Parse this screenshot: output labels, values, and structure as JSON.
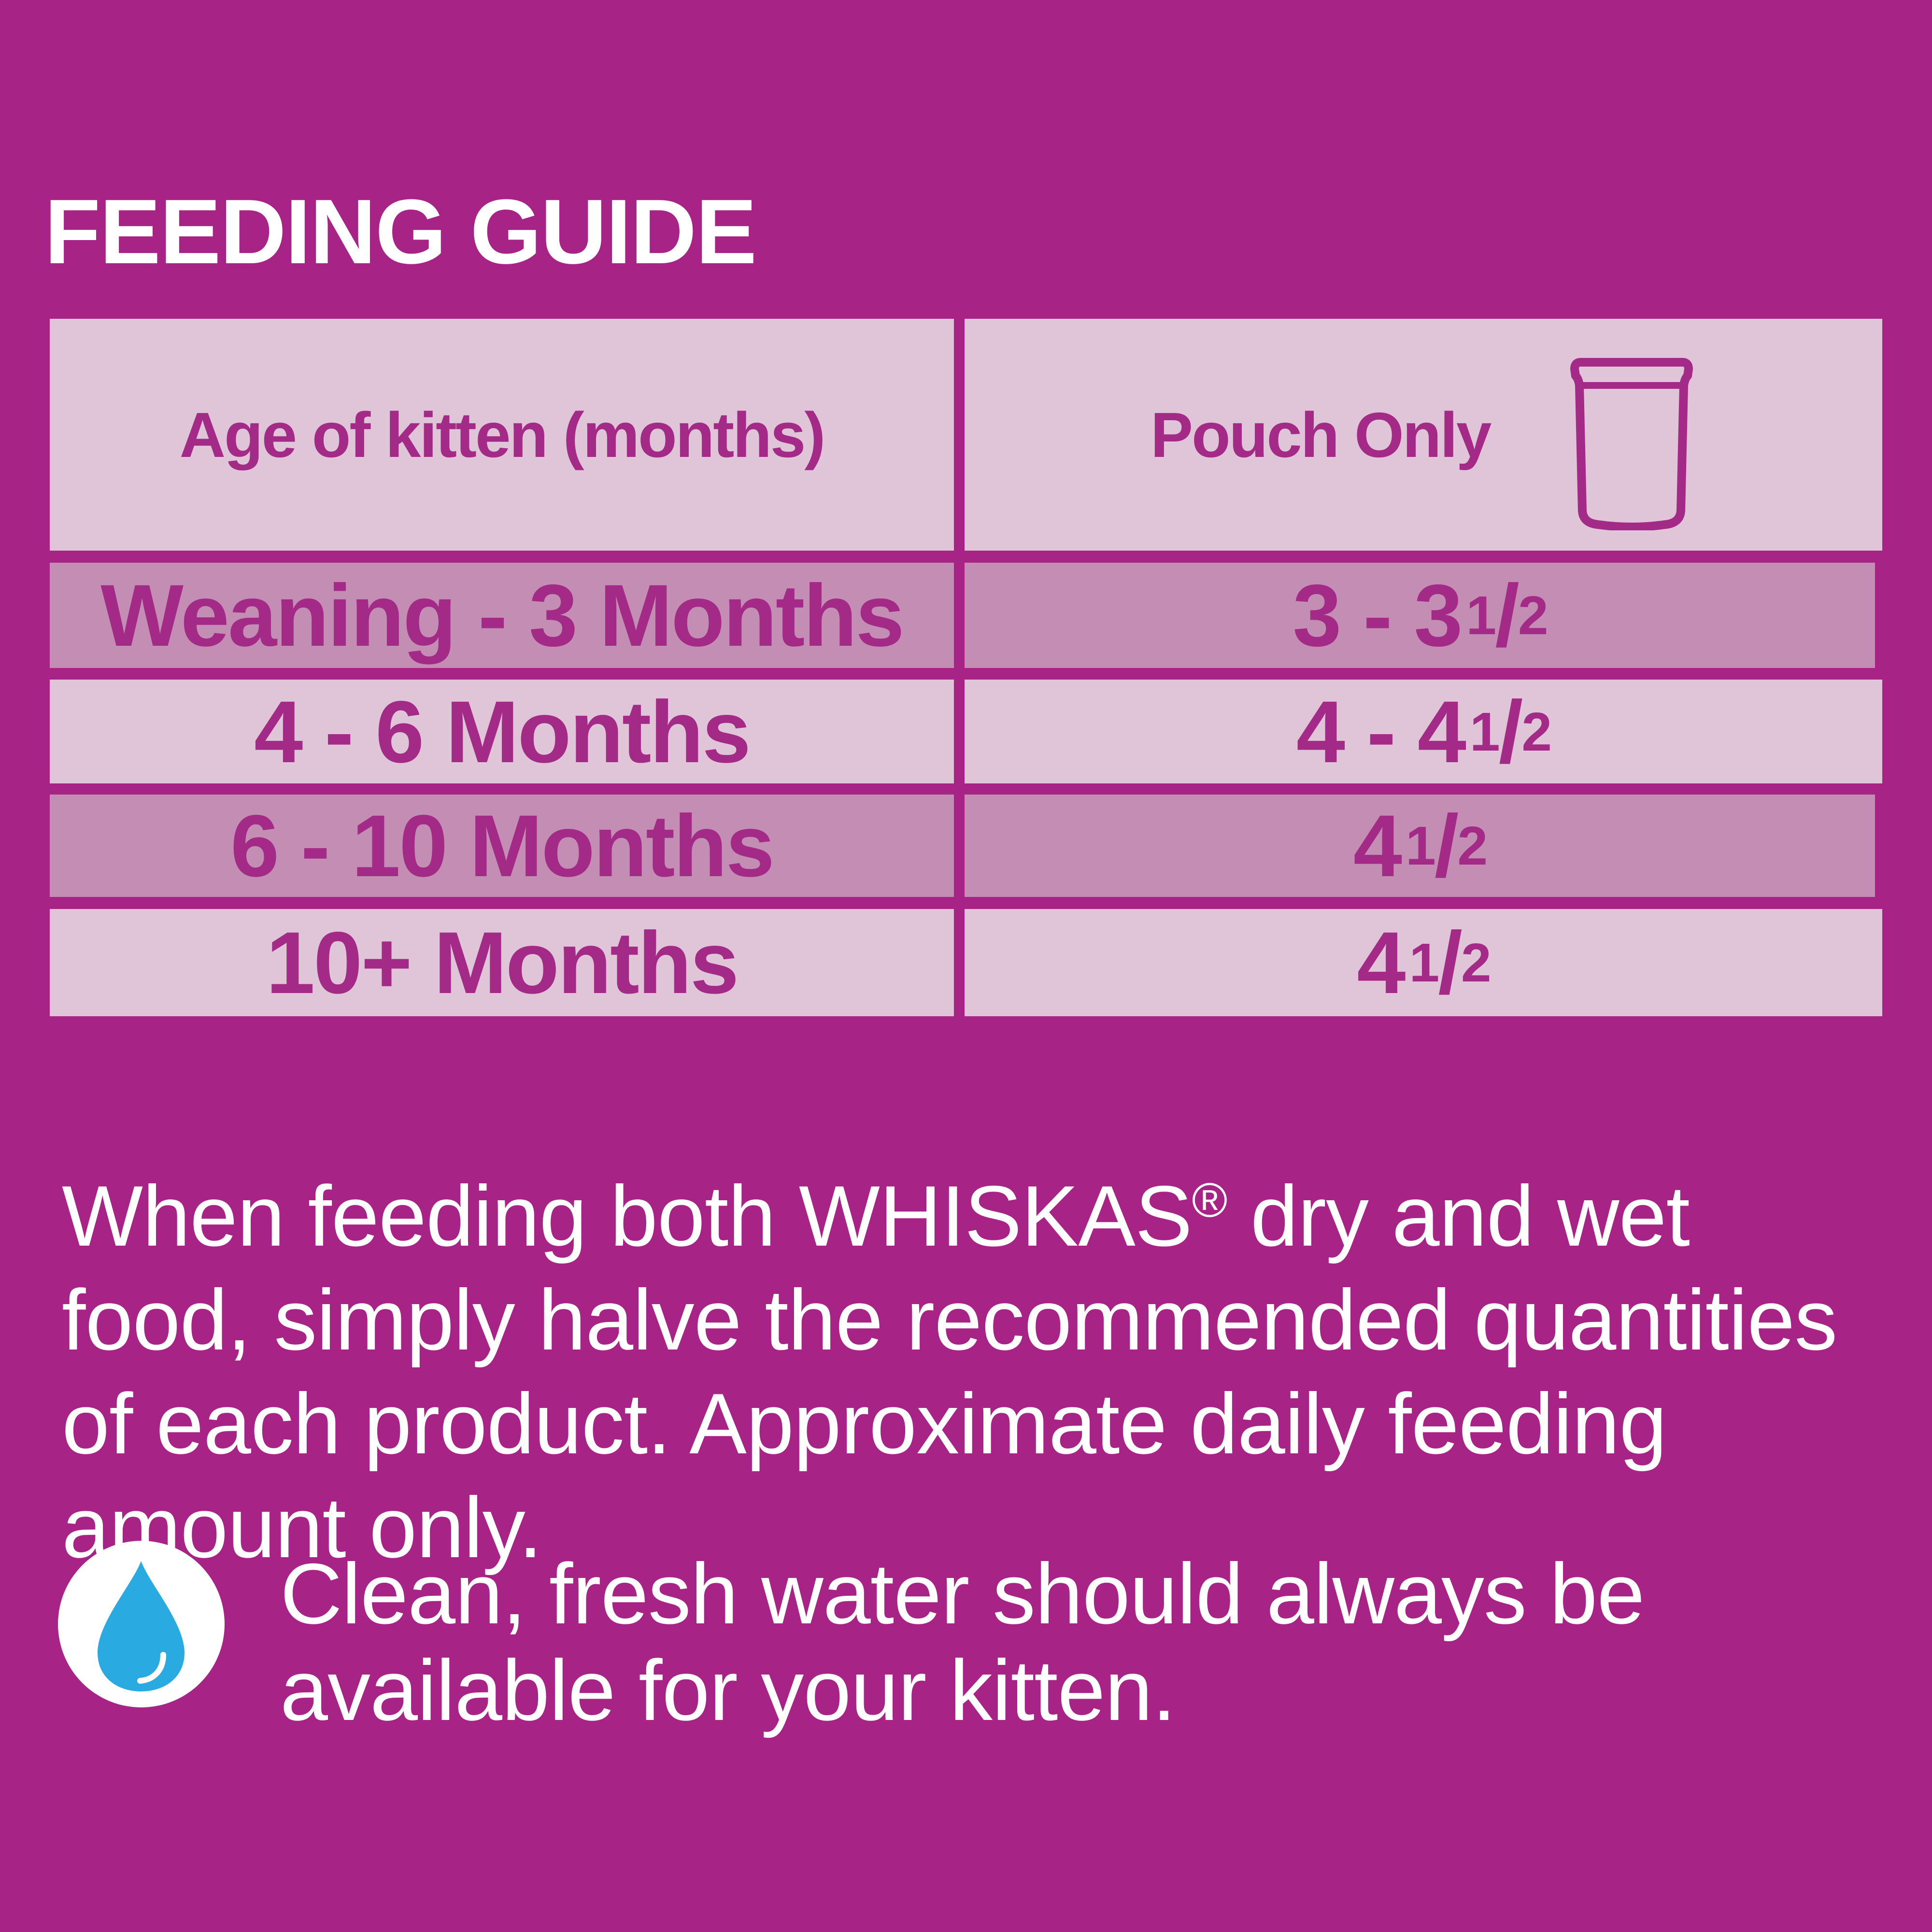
{
  "title": "FEEDING GUIDE",
  "table": {
    "headers": {
      "age": "Age of kitten (months)",
      "pouch": "Pouch Only",
      "pouch_icon": "pouch-icon"
    },
    "rows": [
      {
        "age": "Weaning - 3 Months",
        "amount_whole": "3 - 3",
        "amount_num": "1",
        "amount_den": "2"
      },
      {
        "age": "4 - 6 Months",
        "amount_whole": "4 - 4",
        "amount_num": "1",
        "amount_den": "2"
      },
      {
        "age": "6 - 10 Months",
        "amount_whole": "4",
        "amount_num": "1",
        "amount_den": "2"
      },
      {
        "age": "10+ Months",
        "amount_whole": "4",
        "amount_num": "1",
        "amount_den": "2"
      }
    ]
  },
  "note": {
    "before_mark": "When feeding both WHISKAS",
    "mark": "®",
    "after_mark": " dry and wet food, simply halve the recommended quantities of each product. Approximate daily feeding amount only."
  },
  "water": {
    "icon": "water-drop-icon",
    "text": "Clean, fresh water should always be available for your kitten."
  },
  "colors": {
    "background": "#a82386",
    "cell_light": "#e0c5d8",
    "cell_dark": "#c48eb4",
    "text_purple": "#a32a86",
    "drop_blue": "#29abe2"
  }
}
